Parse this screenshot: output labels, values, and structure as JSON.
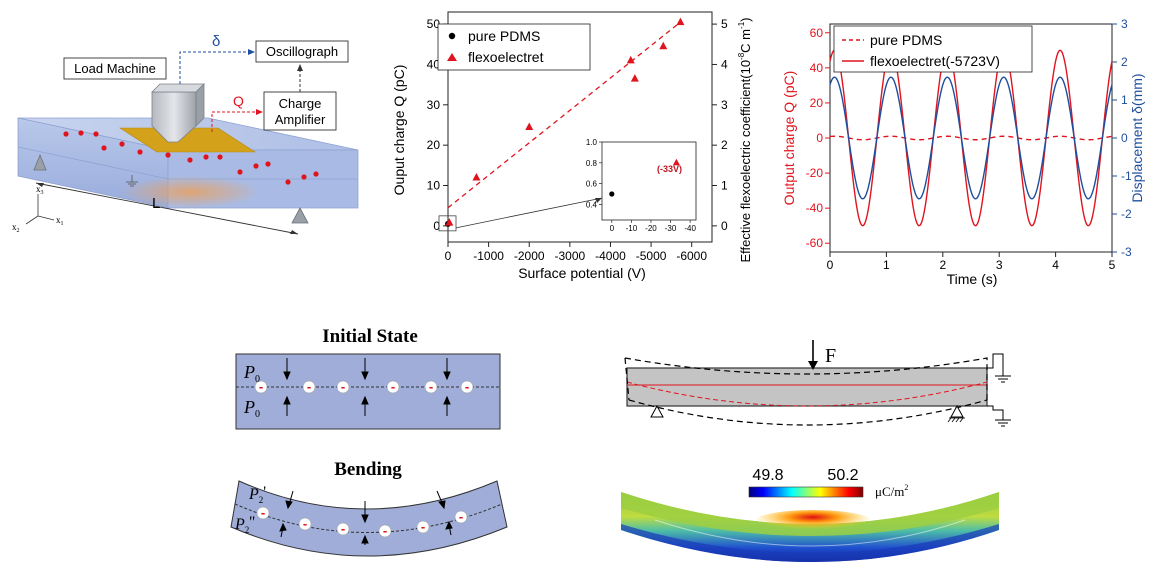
{
  "setup": {
    "load_machine": "Load Machine",
    "oscillograph": "Oscillograph",
    "charge_amplifier_1": "Charge",
    "charge_amplifier_2": "Amplifier",
    "delta": "δ",
    "q": "Q",
    "length": "L",
    "axis_x1": "x",
    "axis_x1_sub": "1",
    "axis_x2": "x",
    "axis_x2_sub": "2",
    "axis_x3": "x",
    "axis_x3_sub": "3"
  },
  "chart_data": [
    {
      "type": "scatter",
      "xlabel": "Surface potential (V)",
      "ylabel": "Ouput charge Q (pC)",
      "y2label": "Effective flexoelectric coefficient(10",
      "y2label_exp": "-8",
      "y2label_tail": "C m",
      "y2label_tail_exp": "-1",
      "y2label_close": ")",
      "xlim": [
        0,
        -6500
      ],
      "ylim": [
        -4,
        53
      ],
      "y2lim": [
        -0.4,
        5.3
      ],
      "xticks": [
        "0",
        "-1000",
        "-2000",
        "-3000",
        "-4000",
        "-5000",
        "-6000"
      ],
      "xtick_values": [
        0,
        -1000,
        -2000,
        -3000,
        -4000,
        -5000,
        -6000
      ],
      "yticks": [
        "0",
        "10",
        "20",
        "30",
        "40",
        "50"
      ],
      "ytick_values": [
        0,
        10,
        20,
        30,
        40,
        50
      ],
      "y2ticks": [
        "0",
        "1",
        "2",
        "3",
        "4",
        "5"
      ],
      "y2tick_values": [
        0,
        1,
        2,
        3,
        4,
        5
      ],
      "legend": "top-left",
      "series": [
        {
          "name": "pure PDMS",
          "marker": "circle",
          "color": "#000000",
          "x": [
            0
          ],
          "y": [
            0.5
          ]
        },
        {
          "name": "flexoelectret",
          "marker": "triangle",
          "color": "#e0141e",
          "x": [
            -33,
            -700,
            -2000,
            -4500,
            -4600,
            -5300,
            -5723
          ],
          "y": [
            0.8,
            12,
            24.5,
            41,
            36.5,
            44.5,
            50.5
          ]
        }
      ],
      "fit": {
        "x": [
          0,
          -5723
        ],
        "y": [
          4.5,
          50.5
        ],
        "color": "#e0141e",
        "style": "dashed"
      },
      "inset": {
        "xlim": [
          5,
          -43
        ],
        "ylim": [
          0.25,
          1.0
        ],
        "xticks": [
          "0",
          "-10",
          "-20",
          "-30",
          "-40"
        ],
        "xtick_values": [
          0,
          -10,
          -20,
          -30,
          -40
        ],
        "yticks": [
          "0.4",
          "0.6",
          "0.8",
          "1.0"
        ],
        "ytick_values": [
          0.4,
          0.6,
          0.8,
          1.0
        ],
        "points": [
          {
            "x": 0,
            "y": 0.5,
            "marker": "circle",
            "color": "#000000"
          },
          {
            "x": -33,
            "y": 0.8,
            "marker": "triangle",
            "color": "#e0141e"
          }
        ],
        "annotation": "(-33V)"
      }
    },
    {
      "type": "line",
      "xlabel": "Time (s)",
      "ylabel": "Output charge Q (pC)",
      "y2label": "Displacement δ(mm)",
      "xlim": [
        0,
        5
      ],
      "ylim": [
        -65,
        65
      ],
      "y2lim": [
        -3,
        3
      ],
      "xticks": [
        "0",
        "1",
        "2",
        "3",
        "4",
        "5"
      ],
      "xtick_values": [
        0,
        1,
        2,
        3,
        4,
        5
      ],
      "yticks": [
        "-60",
        "-40",
        "-20",
        "0",
        "20",
        "40",
        "60"
      ],
      "ytick_values": [
        -60,
        -40,
        -20,
        0,
        20,
        40,
        60
      ],
      "y2ticks": [
        "-3",
        "-2",
        "-1",
        "0",
        "1",
        "2",
        "3"
      ],
      "y2tick_values": [
        -3,
        -2,
        -1,
        0,
        1,
        2,
        3
      ],
      "legend": "top-left",
      "frequency_hz": 1,
      "series": [
        {
          "name": "pure PDMS",
          "color": "#e0141e",
          "style": "dashed",
          "axis": "left",
          "amplitude": 1
        },
        {
          "name": "flexoelectret(-5723V)",
          "color": "#e0141e",
          "style": "solid",
          "axis": "left",
          "amplitude": 50
        },
        {
          "name": "",
          "color": "#1f4e9c",
          "style": "solid",
          "axis": "right",
          "amplitude": 1.6
        }
      ]
    }
  ],
  "states": {
    "initial_title": "Initial State",
    "bending_title": "Bending",
    "p0": "P",
    "p0_sub": "0",
    "p2a": "P",
    "p2a_sub": "2",
    "p2a_prime": "'",
    "p2b": "P",
    "p2b_sub": "2",
    "p2b_prime": "''",
    "charge_symbol": "-"
  },
  "beam": {
    "force": "F"
  },
  "colorbar": {
    "min": "49.8",
    "max": "50.2",
    "unit": "μC/m",
    "unit_exp": "2"
  }
}
